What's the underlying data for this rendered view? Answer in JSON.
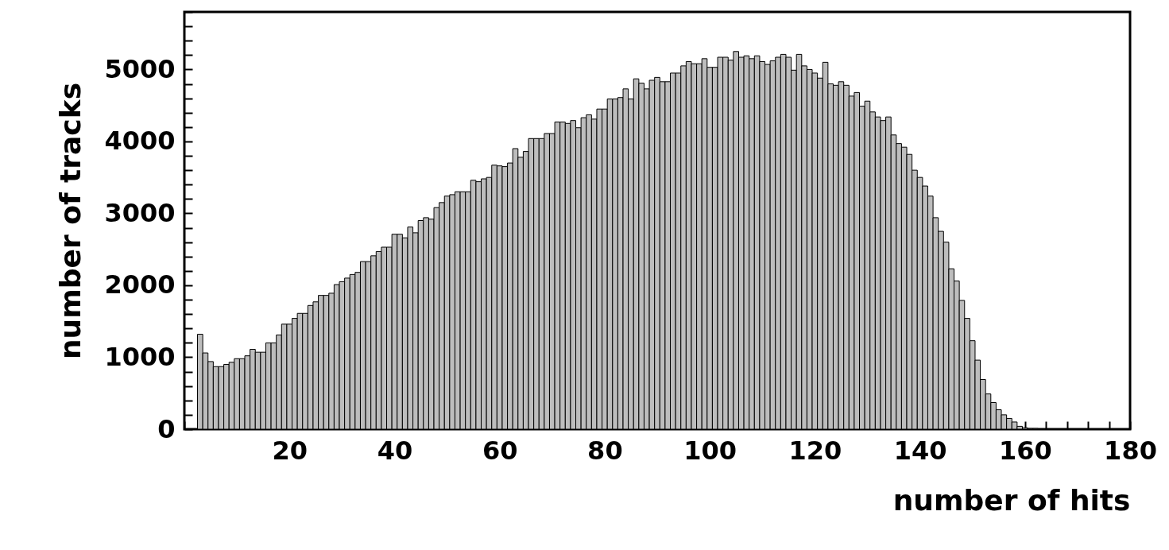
{
  "chart_data": {
    "type": "histogram",
    "xlabel": "number of hits",
    "ylabel": "number of tracks",
    "color": "#bdbdbd",
    "bins": [
      2.5,
      3.5,
      4.5,
      5.5,
      6.5,
      7.5,
      8.5,
      9.5,
      10.5,
      11.5,
      12.5,
      13.5,
      14.5,
      15.5,
      16.5,
      17.5,
      18.5,
      19.5,
      20.5,
      21.5,
      22.5,
      23.5,
      24.5,
      25.5,
      26.5,
      27.5,
      28.5,
      29.5,
      30.5,
      31.5,
      32.5,
      33.5,
      34.5,
      35.5,
      36.5,
      37.5,
      38.5,
      39.5,
      40.5,
      41.5,
      42.5,
      43.5,
      44.5,
      45.5,
      46.5,
      47.5,
      48.5,
      49.5,
      50.5,
      51.5,
      52.5,
      53.5,
      54.5,
      55.5,
      56.5,
      57.5,
      58.5,
      59.5,
      60.5,
      61.5,
      62.5,
      63.5,
      64.5,
      65.5,
      66.5,
      67.5,
      68.5,
      69.5,
      70.5,
      71.5,
      72.5,
      73.5,
      74.5,
      75.5,
      76.5,
      77.5,
      78.5,
      79.5,
      80.5,
      81.5,
      82.5,
      83.5,
      84.5,
      85.5,
      86.5,
      87.5,
      88.5,
      89.5,
      90.5,
      91.5,
      92.5,
      93.5,
      94.5,
      95.5,
      96.5,
      97.5,
      98.5,
      99.5,
      100.5,
      101.5,
      102.5,
      103.5,
      104.5,
      105.5,
      106.5,
      107.5,
      108.5,
      109.5,
      110.5,
      111.5,
      112.5,
      113.5,
      114.5,
      115.5,
      116.5,
      117.5,
      118.5,
      119.5,
      120.5,
      121.5,
      122.5,
      123.5,
      124.5,
      125.5,
      126.5,
      127.5,
      128.5,
      129.5,
      130.5,
      131.5,
      132.5,
      133.5,
      134.5,
      135.5,
      136.5,
      137.5,
      138.5,
      139.5,
      140.5,
      141.5,
      142.5,
      143.5,
      144.5,
      145.5,
      146.5,
      147.5,
      148.5,
      149.5,
      150.5,
      151.5,
      152.5,
      153.5,
      154.5,
      155.5,
      156.5,
      157.5,
      158.5,
      159.5,
      160.5,
      161.5,
      162.5
    ],
    "values": [
      1320,
      1060,
      940,
      870,
      870,
      900,
      930,
      980,
      980,
      1020,
      1110,
      1070,
      1070,
      1200,
      1200,
      1310,
      1460,
      1460,
      1540,
      1610,
      1610,
      1720,
      1770,
      1860,
      1860,
      1890,
      2010,
      2050,
      2100,
      2150,
      2180,
      2330,
      2330,
      2410,
      2470,
      2530,
      2530,
      2710,
      2710,
      2660,
      2810,
      2730,
      2900,
      2940,
      2920,
      3080,
      3150,
      3240,
      3260,
      3300,
      3300,
      3300,
      3460,
      3440,
      3480,
      3500,
      3670,
      3660,
      3650,
      3700,
      3900,
      3780,
      3860,
      4040,
      4040,
      4040,
      4110,
      4110,
      4270,
      4270,
      4250,
      4290,
      4190,
      4330,
      4370,
      4310,
      4450,
      4450,
      4590,
      4590,
      4610,
      4730,
      4590,
      4870,
      4810,
      4730,
      4850,
      4890,
      4830,
      4830,
      4950,
      4950,
      5050,
      5110,
      5080,
      5080,
      5150,
      5030,
      5030,
      5170,
      5170,
      5130,
      5250,
      5170,
      5190,
      5150,
      5190,
      5110,
      5070,
      5120,
      5170,
      5210,
      5170,
      4990,
      5210,
      5050,
      5000,
      4950,
      4880,
      5100,
      4800,
      4780,
      4830,
      4780,
      4630,
      4680,
      4490,
      4560,
      4410,
      4340,
      4290,
      4340,
      4090,
      3970,
      3920,
      3820,
      3600,
      3500,
      3380,
      3240,
      2940,
      2750,
      2600,
      2230,
      2060,
      1790,
      1540,
      1230,
      960,
      690,
      490,
      370,
      270,
      200,
      150,
      100,
      40,
      20,
      10,
      10
    ],
    "xlim": [
      0,
      180
    ],
    "xticks": [
      {
        "value": 0,
        "label": null
      },
      {
        "value": 4,
        "label": null
      },
      {
        "value": 8,
        "label": null
      },
      {
        "value": 12,
        "label": null
      },
      {
        "value": 16,
        "label": null
      },
      20,
      {
        "value": 24,
        "label": null
      },
      {
        "value": 28,
        "label": null
      },
      {
        "value": 32,
        "label": null
      },
      {
        "value": 36,
        "label": null
      },
      40,
      {
        "value": 44,
        "label": null
      },
      {
        "value": 48,
        "label": null
      },
      {
        "value": 52,
        "label": null
      },
      {
        "value": 56,
        "label": null
      },
      60,
      {
        "value": 64,
        "label": null
      },
      {
        "value": 68,
        "label": null
      },
      {
        "value": 72,
        "label": null
      },
      {
        "value": 76,
        "label": null
      },
      80,
      {
        "value": 84,
        "label": null
      },
      {
        "value": 88,
        "label": null
      },
      {
        "value": 92,
        "label": null
      },
      {
        "value": 96,
        "label": null
      },
      100,
      {
        "value": 104,
        "label": null
      },
      {
        "value": 108,
        "label": null
      },
      {
        "value": 112,
        "label": null
      },
      {
        "value": 116,
        "label": null
      },
      120,
      {
        "value": 124,
        "label": null
      },
      {
        "value": 128,
        "label": null
      },
      {
        "value": 132,
        "label": null
      },
      {
        "value": 136,
        "label": null
      },
      140,
      {
        "value": 144,
        "label": null
      },
      {
        "value": 148,
        "label": null
      },
      {
        "value": 152,
        "label": null
      },
      {
        "value": 156,
        "label": null
      },
      160,
      {
        "value": 164,
        "label": null
      },
      {
        "value": 168,
        "label": null
      },
      {
        "value": 172,
        "label": null
      },
      {
        "value": 176,
        "label": null
      },
      180
    ],
    "ylim": [
      0,
      5800
    ],
    "yticks": [
      0,
      {
        "value": 200,
        "label": null
      },
      {
        "value": 400,
        "label": null
      },
      {
        "value": 600,
        "label": null
      },
      {
        "value": 800,
        "label": null
      },
      1000,
      {
        "value": 1200,
        "label": null
      },
      {
        "value": 1400,
        "label": null
      },
      {
        "value": 1600,
        "label": null
      },
      {
        "value": 1800,
        "label": null
      },
      2000,
      {
        "value": 2200,
        "label": null
      },
      {
        "value": 2400,
        "label": null
      },
      {
        "value": 2600,
        "label": null
      },
      {
        "value": 2800,
        "label": null
      },
      3000,
      {
        "value": 3200,
        "label": null
      },
      {
        "value": 3400,
        "label": null
      },
      {
        "value": 3600,
        "label": null
      },
      {
        "value": 3800,
        "label": null
      },
      4000,
      {
        "value": 4200,
        "label": null
      },
      {
        "value": 4400,
        "label": null
      },
      {
        "value": 4600,
        "label": null
      },
      {
        "value": 4800,
        "label": null
      },
      5000,
      {
        "value": 5200,
        "label": null
      },
      {
        "value": 5400,
        "label": null
      },
      {
        "value": 5600,
        "label": null
      },
      {
        "value": 5800,
        "label": null
      }
    ]
  }
}
